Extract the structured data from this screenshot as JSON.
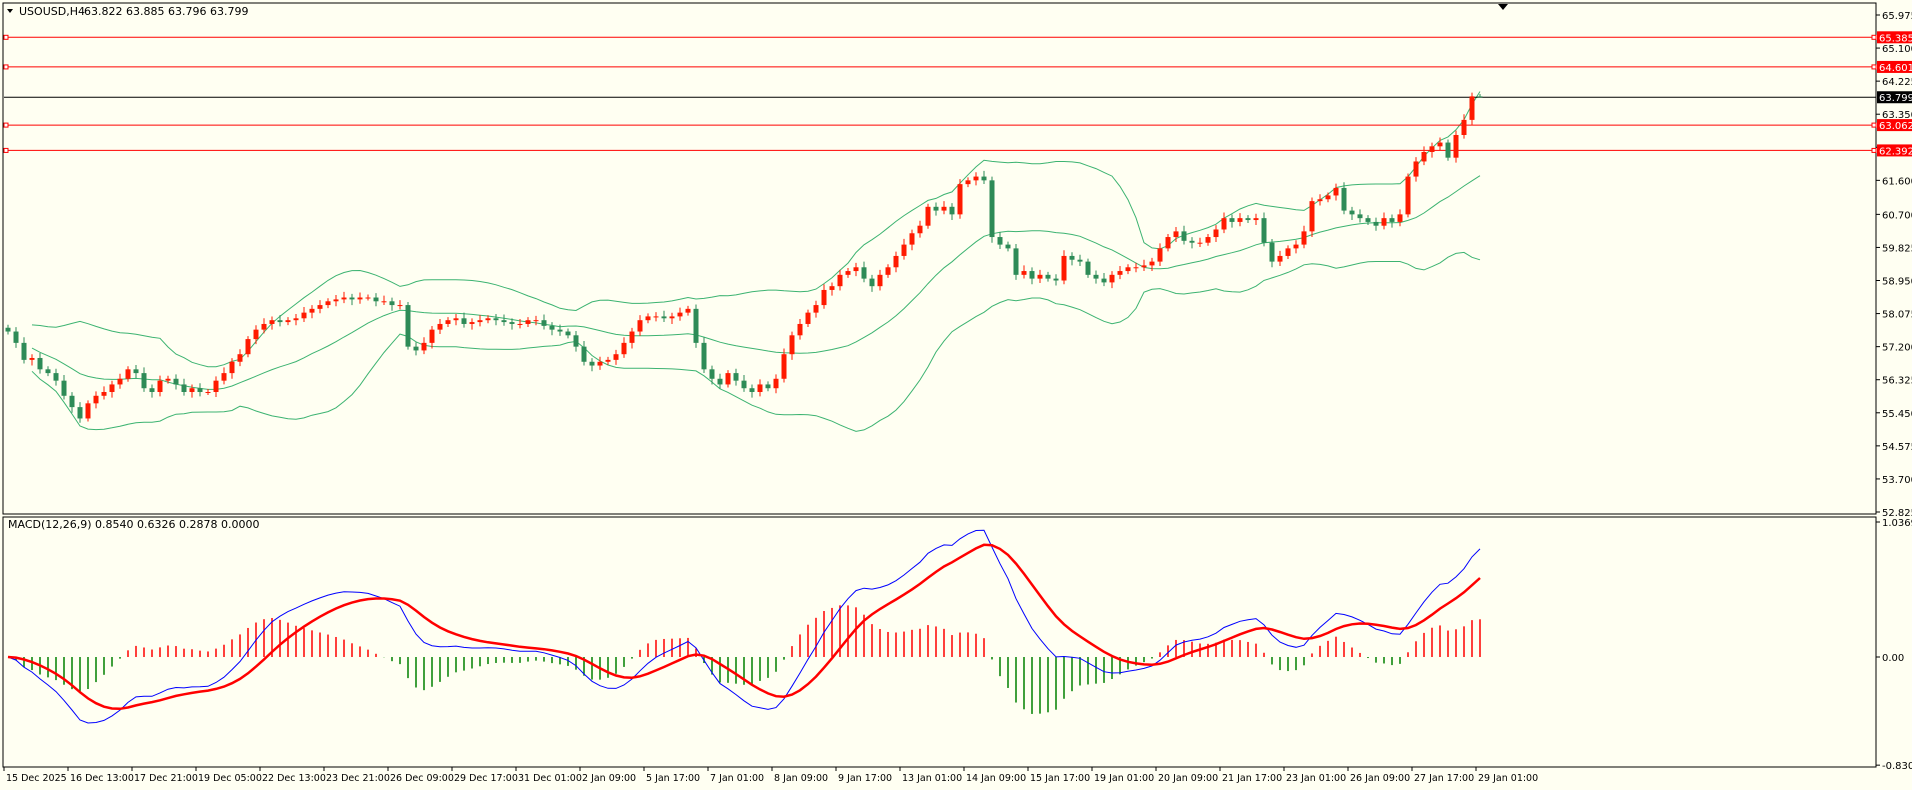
{
  "header": {
    "symbol_label": "USOUSD,H4",
    "ohlc_label": "63.822 63.885 63.796 63.799",
    "menu_icon": "triangle-down-icon"
  },
  "macd_header": {
    "label": "MACD(12,26,9) 0.8540 0.6326 0.2878 0.0000"
  },
  "colors": {
    "background": "#fffff2",
    "bull_candle": "#ff1a00",
    "bear_candle": "#2e8b57",
    "bands": "#3cb371",
    "macd_line": "#0000ff",
    "signal_line": "#ff0000",
    "hist_positive": "#ff0000",
    "hist_negative": "#008000",
    "level_line": "#ff0000",
    "price_line": "#000000"
  },
  "chart_data": [
    {
      "type": "candlestick",
      "title": "USOUSD,H4",
      "ylim": [
        52.825,
        65.975
      ],
      "price_ticks": [
        "52.825",
        "53.700",
        "54.575",
        "55.450",
        "56.325",
        "57.200",
        "58.075",
        "58.950",
        "59.825",
        "60.700",
        "61.600",
        "62.475",
        "63.350",
        "64.225",
        "65.100",
        "65.975"
      ],
      "hidden_ticks": [
        "62.475"
      ],
      "levels": [
        {
          "value": 65.385,
          "label": "65.385"
        },
        {
          "value": 64.601,
          "label": "64.601"
        },
        {
          "value": 63.062,
          "label": "63.062"
        },
        {
          "value": 62.392,
          "label": "62.392"
        }
      ],
      "current_price": {
        "value": 63.799,
        "label": "63.799"
      },
      "indicator": "Bollinger Bands (20,2)",
      "last_bar": {
        "open": 63.822,
        "high": 63.885,
        "low": 63.796,
        "close": 63.799
      },
      "close": [
        57.6,
        57.3,
        56.85,
        56.9,
        56.6,
        56.5,
        56.3,
        55.9,
        55.6,
        55.3,
        55.7,
        55.9,
        56.0,
        56.2,
        56.35,
        56.6,
        56.5,
        56.1,
        56.0,
        56.3,
        56.35,
        56.2,
        56.0,
        56.1,
        56.0,
        56.0,
        56.3,
        56.5,
        56.8,
        57.0,
        57.4,
        57.65,
        57.8,
        57.9,
        57.85,
        57.9,
        57.95,
        58.1,
        58.2,
        58.3,
        58.4,
        58.45,
        58.5,
        58.45,
        58.5,
        58.5,
        58.4,
        58.4,
        58.3,
        58.3,
        57.2,
        57.1,
        57.3,
        57.65,
        57.8,
        57.9,
        57.95,
        57.8,
        57.85,
        57.9,
        57.95,
        57.9,
        57.85,
        57.8,
        57.8,
        57.9,
        57.9,
        57.75,
        57.65,
        57.6,
        57.5,
        57.2,
        56.8,
        56.7,
        56.8,
        56.85,
        57.0,
        57.3,
        57.6,
        57.9,
        58.0,
        58.0,
        57.95,
        58.0,
        58.1,
        58.2,
        57.3,
        56.6,
        56.35,
        56.2,
        56.5,
        56.3,
        56.1,
        56.0,
        56.2,
        56.1,
        56.35,
        57.0,
        57.5,
        57.8,
        58.1,
        58.3,
        58.7,
        58.8,
        59.1,
        59.2,
        59.3,
        59.0,
        58.8,
        59.1,
        59.3,
        59.6,
        59.9,
        60.2,
        60.4,
        60.9,
        60.8,
        60.9,
        60.7,
        61.5,
        61.6,
        61.7,
        61.6,
        60.1,
        59.9,
        59.8,
        59.1,
        59.2,
        59.0,
        59.1,
        59.0,
        58.95,
        59.6,
        59.5,
        59.45,
        59.1,
        59.0,
        58.9,
        59.1,
        59.2,
        59.3,
        59.3,
        59.35,
        59.45,
        59.8,
        60.1,
        60.25,
        60.0,
        59.95,
        59.95,
        60.1,
        60.3,
        60.6,
        60.5,
        60.6,
        60.55,
        60.6,
        59.95,
        59.45,
        59.6,
        59.8,
        59.9,
        60.25,
        61.05,
        61.1,
        61.2,
        61.4,
        60.8,
        60.7,
        60.6,
        60.5,
        60.4,
        60.6,
        60.5,
        60.7,
        61.7,
        62.1,
        62.35,
        62.5,
        62.6,
        62.2,
        62.8,
        63.2,
        63.822,
        63.799
      ]
    },
    {
      "type": "line",
      "title": "MACD(12,26,9)",
      "ylim": [
        -0.8307,
        1.0369
      ],
      "ticks": [
        "1.0369",
        "0.00",
        "-0.8307"
      ],
      "series": [
        {
          "name": "MACD",
          "last": 0.854
        },
        {
          "name": "Signal",
          "last": 0.6326
        },
        {
          "name": "Histogram",
          "last": 0.2878
        }
      ]
    }
  ],
  "time_axis": [
    "15 Dec 2025",
    "16 Dec 13:00",
    "17 Dec 21:00",
    "19 Dec 05:00",
    "22 Dec 13:00",
    "23 Dec 21:00",
    "26 Dec 09:00",
    "29 Dec 17:00",
    "31 Dec 01:00",
    "2 Jan 09:00",
    "5 Jan 17:00",
    "7 Jan 01:00",
    "8 Jan 09:00",
    "9 Jan 17:00",
    "13 Jan 01:00",
    "14 Jan 09:00",
    "15 Jan 17:00",
    "19 Jan 01:00",
    "20 Jan 09:00",
    "21 Jan 17:00",
    "23 Jan 01:00",
    "26 Jan 09:00",
    "27 Jan 17:00",
    "29 Jan 01:00"
  ]
}
